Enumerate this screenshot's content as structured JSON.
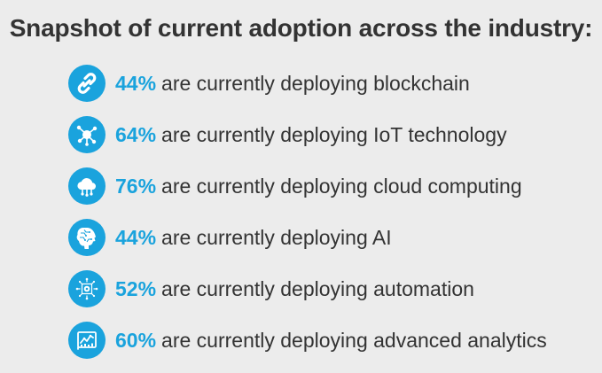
{
  "title": "Snapshot of current adoption across the industry:",
  "accent_color": "#1aa3dd",
  "items": [
    {
      "icon": "chain-link-icon",
      "percent": "44%",
      "text": "are currently deploying blockchain"
    },
    {
      "icon": "iot-network-icon",
      "percent": "64%",
      "text": "are currently deploying IoT technology"
    },
    {
      "icon": "cloud-computing-icon",
      "percent": "76%",
      "text": "are currently deploying cloud computing"
    },
    {
      "icon": "ai-brain-icon",
      "percent": "44%",
      "text": "are currently deploying AI"
    },
    {
      "icon": "automation-gear-icon",
      "percent": "52%",
      "text": "are currently deploying automation"
    },
    {
      "icon": "analytics-chart-icon",
      "percent": "60%",
      "text": "are currently deploying advanced analytics"
    }
  ]
}
